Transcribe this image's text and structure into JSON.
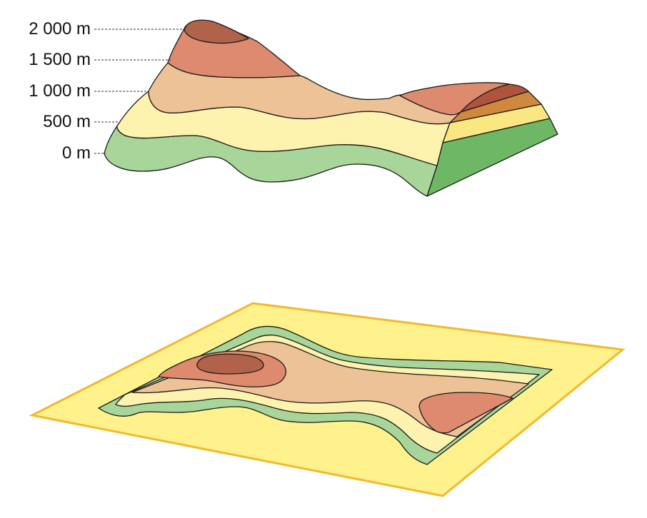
{
  "elevation_labels": [
    "2 000 m",
    "1 500 m",
    "1 000 m",
    "500 m",
    "0 m"
  ],
  "colors": {
    "band_0_500": "#a8d69a",
    "band_500_1000": "#fdf2ae",
    "band_1000_1500": "#eec297",
    "band_1500_2000": "#dd8a6e",
    "band_above_2000": "#b0634a",
    "side_0_500": "#6eb765",
    "side_500_1000": "#fbe781",
    "side_1000_1500": "#d0893c",
    "side_1500_2000": "#b0533d",
    "map_paper": "#fff18c",
    "map_border": "#f2b92e"
  },
  "icons": {
    "terrain": "terrain-block-3d-icon",
    "map": "contour-map-sheet-icon"
  }
}
